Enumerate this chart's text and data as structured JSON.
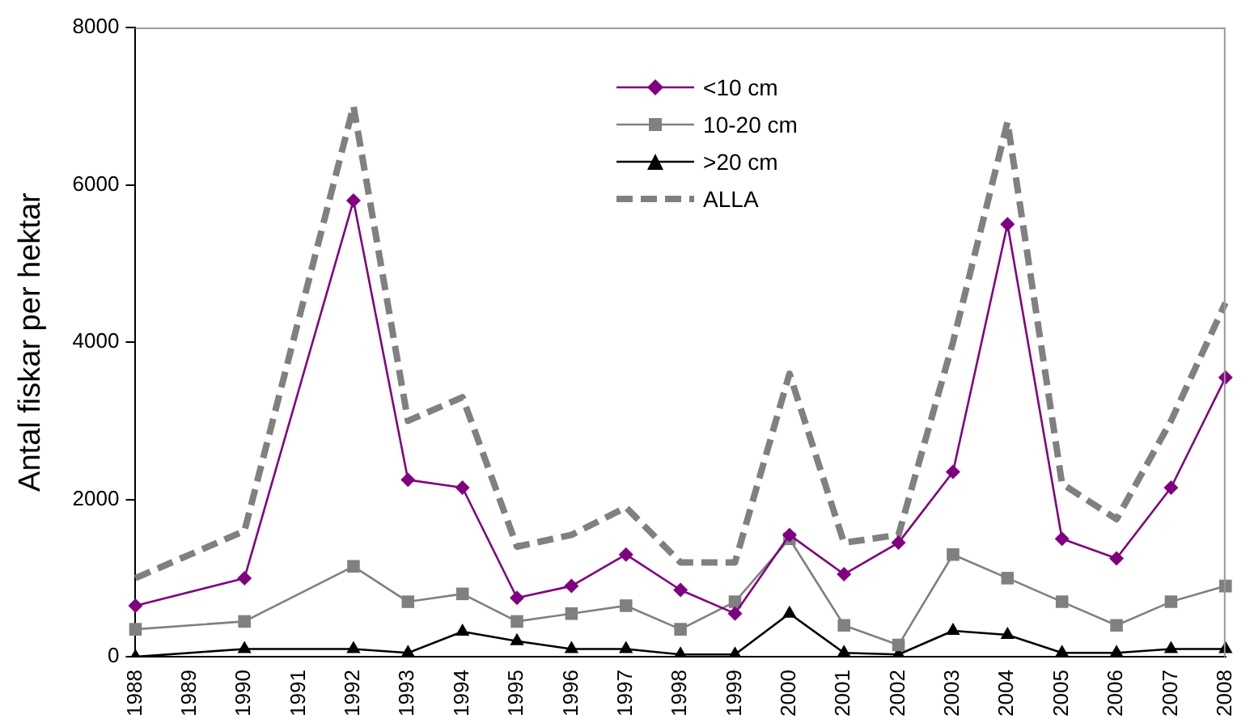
{
  "chart_data": {
    "type": "line",
    "ylabel": "Antal fiskar per hektar",
    "categories": [
      "1988",
      "1989",
      "1990",
      "1991",
      "1992",
      "1993",
      "1994",
      "1995",
      "1996",
      "1997",
      "1998",
      "1999",
      "2000",
      "2001",
      "2002",
      "2003",
      "2004",
      "2005",
      "2006",
      "2007",
      "2008"
    ],
    "series": [
      {
        "name": "<10 cm",
        "color": "#800080",
        "marker": "diamond",
        "values": [
          650,
          null,
          1000,
          null,
          5800,
          2250,
          2150,
          750,
          900,
          1300,
          850,
          550,
          1550,
          1050,
          1450,
          2350,
          5500,
          1500,
          1250,
          2150,
          3550
        ]
      },
      {
        "name": "10-20 cm",
        "color": "#808080",
        "marker": "square",
        "values": [
          350,
          null,
          450,
          null,
          1150,
          700,
          800,
          450,
          550,
          650,
          350,
          700,
          1500,
          400,
          150,
          1300,
          1000,
          700,
          400,
          700,
          900
        ]
      },
      {
        "name": ">20 cm",
        "color": "#000000",
        "marker": "triangle",
        "values": [
          0,
          null,
          100,
          null,
          100,
          50,
          320,
          200,
          100,
          100,
          30,
          30,
          550,
          50,
          30,
          330,
          280,
          50,
          50,
          100,
          100
        ]
      },
      {
        "name": "ALLA",
        "color": "#808080",
        "marker": "none",
        "line_style": "dashed",
        "values": [
          1000,
          null,
          1600,
          null,
          7000,
          3000,
          3300,
          1400,
          1550,
          1900,
          1200,
          1200,
          3600,
          1450,
          1550,
          4000,
          6800,
          2200,
          1750,
          3000,
          4500
        ]
      }
    ],
    "ylim": [
      0,
      8000
    ],
    "yticks": [
      0,
      2000,
      4000,
      6000,
      8000
    ],
    "grid": false,
    "legend": "top"
  }
}
